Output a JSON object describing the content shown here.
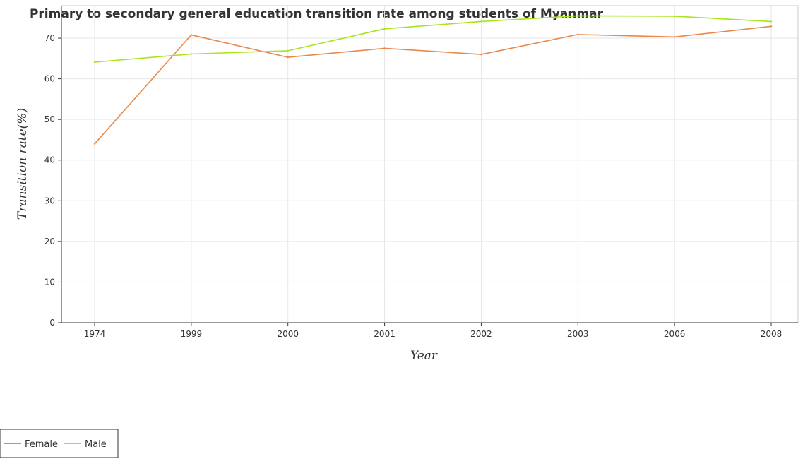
{
  "chart_data": {
    "type": "line",
    "title": "Primary to secondary general education transition rate among students of Myanmar",
    "xlabel": "Year",
    "ylabel": "Transition rate(%)",
    "categories": [
      "1974",
      "1999",
      "2000",
      "2001",
      "2002",
      "2003",
      "2006",
      "2008"
    ],
    "ylim": [
      0,
      78
    ],
    "yticks": [
      "0",
      "10",
      "20",
      "30",
      "40",
      "50",
      "60",
      "70"
    ],
    "grid": true,
    "legend_position": "bottom-left",
    "series": [
      {
        "name": "Female",
        "color": "#e8894c",
        "values": [
          44.0,
          70.8,
          65.3,
          67.5,
          66.0,
          70.9,
          70.3,
          72.9
        ]
      },
      {
        "name": "Male",
        "color": "#a8e41d",
        "values": [
          64.1,
          66.1,
          66.9,
          72.3,
          74.1,
          75.5,
          75.4,
          74.1
        ]
      }
    ]
  }
}
